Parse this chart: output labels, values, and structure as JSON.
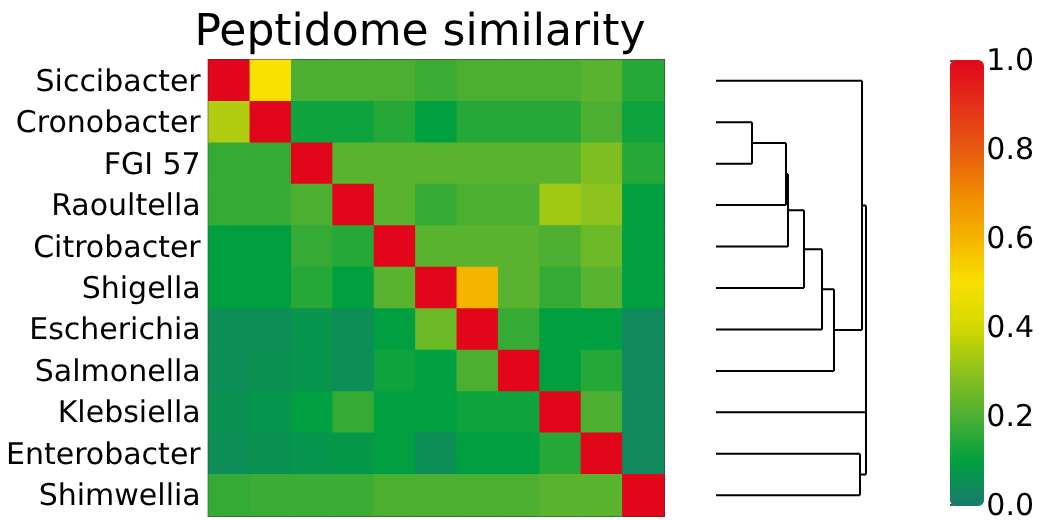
{
  "chart_data": {
    "type": "heatmap",
    "title": "Peptidome similarity",
    "categories": [
      null,
      null,
      null,
      null,
      null,
      null,
      null,
      null,
      null,
      null,
      null
    ],
    "y_categories": [
      "Siccibacter",
      "Cronobacter",
      "FGI 57",
      "Raoultella",
      "Citrobacter",
      "Shigella",
      "Escherichia",
      "Salmonella",
      "Klebsiella",
      "Enterobacter",
      "Shimwellia"
    ],
    "cells": [
      [
        1,
        0.5,
        0.2,
        0.2,
        0.2,
        0.18,
        0.2,
        0.2,
        0.2,
        0.22,
        0.15
      ],
      [
        0.35,
        1,
        0.12,
        0.12,
        0.15,
        0.1,
        0.15,
        0.15,
        0.15,
        0.2,
        0.12
      ],
      [
        0.17,
        0.17,
        1,
        0.22,
        0.22,
        0.22,
        0.22,
        0.22,
        0.22,
        0.28,
        0.15
      ],
      [
        0.17,
        0.17,
        0.2,
        1,
        0.22,
        0.17,
        0.2,
        0.2,
        0.33,
        0.3,
        0.1
      ],
      [
        0.1,
        0.1,
        0.17,
        0.15,
        1,
        0.22,
        0.22,
        0.22,
        0.2,
        0.25,
        0.1
      ],
      [
        0.1,
        0.1,
        0.15,
        0.1,
        0.22,
        1,
        0.6,
        0.22,
        0.17,
        0.22,
        0.1
      ],
      [
        0.05,
        0.05,
        0.07,
        0.05,
        0.1,
        0.25,
        1,
        0.17,
        0.1,
        0.1,
        0.04
      ],
      [
        0.05,
        0.06,
        0.07,
        0.05,
        0.12,
        0.1,
        0.2,
        1,
        0.1,
        0.15,
        0.04
      ],
      [
        0.06,
        0.07,
        0.1,
        0.17,
        0.1,
        0.1,
        0.12,
        0.12,
        1,
        0.2,
        0.04
      ],
      [
        0.05,
        0.06,
        0.07,
        0.08,
        0.1,
        0.05,
        0.1,
        0.1,
        0.15,
        1,
        0.04
      ],
      [
        0.17,
        0.18,
        0.18,
        0.18,
        0.2,
        0.2,
        0.2,
        0.2,
        0.22,
        0.22,
        1
      ]
    ],
    "clim": [
      0,
      1
    ],
    "cticks": [
      {
        "value": 0,
        "label": "0.0"
      },
      {
        "value": 0.2,
        "label": "0.2"
      },
      {
        "value": 0.4,
        "label": "0.4"
      },
      {
        "value": 0.6,
        "label": "0.6"
      },
      {
        "value": 0.8,
        "label": "0.8"
      },
      {
        "value": 1,
        "label": "1.0"
      }
    ]
  }
}
